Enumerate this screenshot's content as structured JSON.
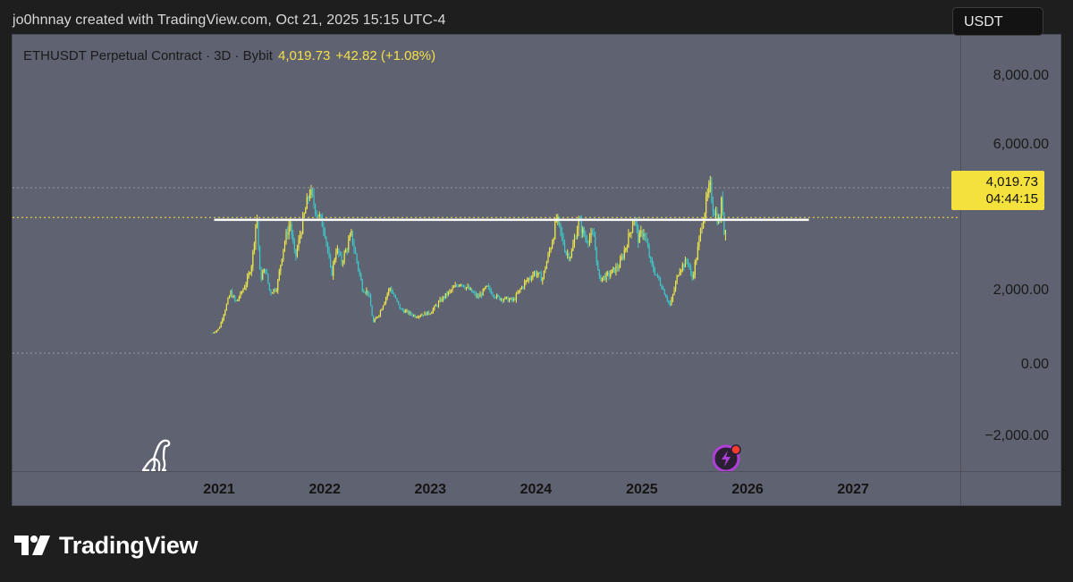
{
  "header": {
    "text": "jo0hnnay created with TradingView.com, Oct 21, 2025 15:15 UTC-4"
  },
  "legend": {
    "symbol": "ETHUSDT Perpetual Contract · 3D · Bybit",
    "price": "4,019.73",
    "change": "+42.82 (+1.08%)"
  },
  "currency_badge": "USDT",
  "last_price_tag": {
    "price": "4,019.73",
    "countdown": "04:44:15"
  },
  "price_scale_labels": [
    "8,000.00",
    "6,000.00",
    "2,000.00",
    "0.00",
    "−2,000.00"
  ],
  "brand": {
    "name": "TradingView"
  },
  "icons": {
    "left_marker": "dinosaur-icon",
    "right_marker": "lightning-bolt-icon"
  },
  "colors": {
    "pane_bg": "#5f6270",
    "candles_up": "#f0e84a",
    "candles_down": "#3ec7c8",
    "last_price": "#f5e13b",
    "hline": "#ffffff",
    "bolt_ring": "#b03fd8"
  },
  "chart_data": {
    "type": "line",
    "title": "",
    "xlabel": "",
    "ylabel": "",
    "x_tick_labels": [
      "2021",
      "2022",
      "2023",
      "2024",
      "2025",
      "2026",
      "2027"
    ],
    "ylim": [
      -2800,
      8600
    ],
    "grid": false,
    "horizontal_lines": [
      {
        "name": "resistance",
        "value": 3950,
        "x_start": "2020-12-15",
        "x_end": "2026-08-01",
        "style": "solid"
      }
    ],
    "dotted_levels": [
      4019.73,
      4900,
      0
    ],
    "series": [
      {
        "values": [
          [
            "2020-12-10",
            600
          ],
          [
            "2021-01-01",
            730
          ],
          [
            "2021-01-20",
            1250
          ],
          [
            "2021-02-10",
            1800
          ],
          [
            "2021-02-28",
            1500
          ],
          [
            "2021-03-20",
            1800
          ],
          [
            "2021-04-10",
            2200
          ],
          [
            "2021-04-25",
            2700
          ],
          [
            "2021-05-11",
            4150
          ],
          [
            "2021-05-23",
            2200
          ],
          [
            "2021-06-10",
            2500
          ],
          [
            "2021-06-26",
            1800
          ],
          [
            "2021-07-20",
            1950
          ],
          [
            "2021-08-10",
            3100
          ],
          [
            "2021-09-03",
            3900
          ],
          [
            "2021-09-21",
            2800
          ],
          [
            "2021-10-15",
            3800
          ],
          [
            "2021-11-10",
            4800
          ],
          [
            "2021-12-04",
            4200
          ],
          [
            "2021-12-31",
            3700
          ],
          [
            "2022-01-24",
            2300
          ],
          [
            "2022-02-10",
            3100
          ],
          [
            "2022-03-01",
            2700
          ],
          [
            "2022-04-03",
            3500
          ],
          [
            "2022-05-12",
            1900
          ],
          [
            "2022-06-01",
            1800
          ],
          [
            "2022-06-18",
            900
          ],
          [
            "2022-07-10",
            1200
          ],
          [
            "2022-08-14",
            1950
          ],
          [
            "2022-09-20",
            1300
          ],
          [
            "2022-11-10",
            1100
          ],
          [
            "2022-12-31",
            1200
          ],
          [
            "2023-02-15",
            1650
          ],
          [
            "2023-04-15",
            2100
          ],
          [
            "2023-06-15",
            1650
          ],
          [
            "2023-07-15",
            1950
          ],
          [
            "2023-08-20",
            1650
          ],
          [
            "2023-10-15",
            1560
          ],
          [
            "2023-11-20",
            2050
          ],
          [
            "2023-12-28",
            2400
          ],
          [
            "2024-01-23",
            2200
          ],
          [
            "2024-02-28",
            3400
          ],
          [
            "2024-03-12",
            4000
          ],
          [
            "2024-04-15",
            2950
          ],
          [
            "2024-05-01",
            2900
          ],
          [
            "2024-05-27",
            3900
          ],
          [
            "2024-06-20",
            3400
          ],
          [
            "2024-07-20",
            3450
          ],
          [
            "2024-08-05",
            2200
          ],
          [
            "2024-09-06",
            2300
          ],
          [
            "2024-10-15",
            2600
          ],
          [
            "2024-11-12",
            3300
          ],
          [
            "2024-12-06",
            4050
          ],
          [
            "2024-12-20",
            3350
          ],
          [
            "2025-01-06",
            3650
          ],
          [
            "2025-02-03",
            2600
          ],
          [
            "2025-03-10",
            2000
          ],
          [
            "2025-04-09",
            1400
          ],
          [
            "2025-05-10",
            2500
          ],
          [
            "2025-06-10",
            2750
          ],
          [
            "2025-06-22",
            2150
          ],
          [
            "2025-07-10",
            2900
          ],
          [
            "2025-07-28",
            3900
          ],
          [
            "2025-08-24",
            4950
          ],
          [
            "2025-09-05",
            4300
          ],
          [
            "2025-09-26",
            3850
          ],
          [
            "2025-10-06",
            4750
          ],
          [
            "2025-10-10",
            3450
          ],
          [
            "2025-10-21",
            4019.73
          ]
        ]
      }
    ]
  }
}
